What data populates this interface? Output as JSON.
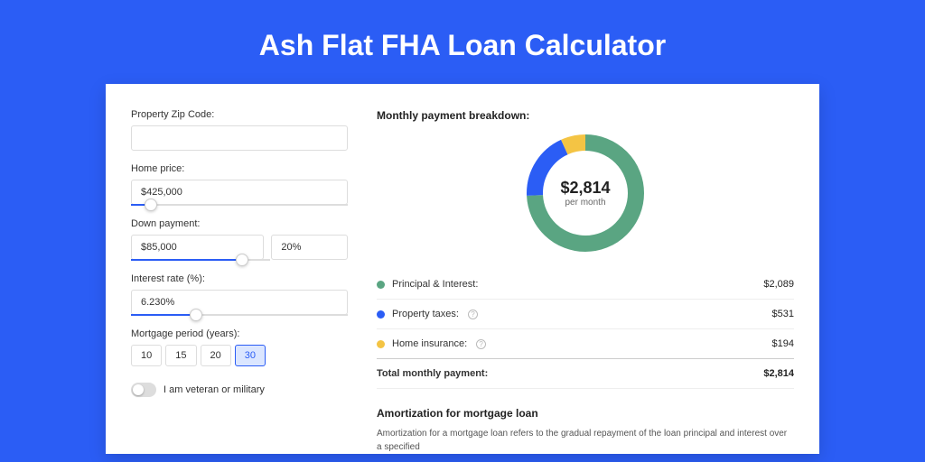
{
  "title": "Ash Flat FHA Loan Calculator",
  "form": {
    "zip": {
      "label": "Property Zip Code:",
      "value": ""
    },
    "home_price": {
      "label": "Home price:",
      "value": "$425,000",
      "slider_pct": 9
    },
    "down_payment": {
      "label": "Down payment:",
      "value": "$85,000",
      "pct_value": "20%",
      "slider_pct": 20
    },
    "interest": {
      "label": "Interest rate (%):",
      "value": "6.230%",
      "slider_pct": 30
    },
    "period": {
      "label": "Mortgage period (years):",
      "options": [
        "10",
        "15",
        "20",
        "30"
      ],
      "selected": "30"
    },
    "veteran": {
      "label": "I am veteran or military",
      "checked": false
    }
  },
  "breakdown": {
    "title": "Monthly payment breakdown:",
    "donut": {
      "value": "$2,814",
      "sub": "per month",
      "slices": [
        {
          "color": "#5aa582",
          "pct": 74.2
        },
        {
          "color": "#2b5df5",
          "pct": 18.9
        },
        {
          "color": "#f4c444",
          "pct": 6.9
        }
      ],
      "thickness": 18,
      "size": 130
    },
    "rows": [
      {
        "label": "Principal & Interest:",
        "value": "$2,089",
        "color": "#5aa582",
        "info": false
      },
      {
        "label": "Property taxes:",
        "value": "$531",
        "color": "#2b5df5",
        "info": true
      },
      {
        "label": "Home insurance:",
        "value": "$194",
        "color": "#f4c444",
        "info": true
      }
    ],
    "total": {
      "label": "Total monthly payment:",
      "value": "$2,814"
    }
  },
  "amort": {
    "title": "Amortization for mortgage loan",
    "text": "Amortization for a mortgage loan refers to the gradual repayment of the loan principal and interest over a specified"
  },
  "colors": {
    "accent": "#2b5df5",
    "bg": "#2b5df5"
  }
}
